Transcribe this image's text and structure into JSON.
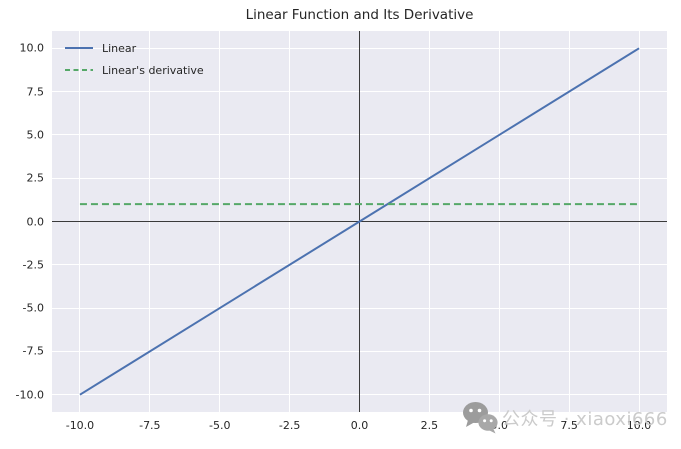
{
  "chart_data": {
    "type": "line",
    "title": "Linear Function and Its Derivative",
    "xlabel": "",
    "ylabel": "",
    "xlim": [
      -11,
      11
    ],
    "ylim": [
      -11,
      11
    ],
    "grid": true,
    "background_color": "#EAEAF2",
    "gridline_color": "#FFFFFF",
    "origin_axis_lines": {
      "vertical_at_x": 0,
      "horizontal_at_y": 0,
      "color": "#3A3A3A"
    },
    "xticks": [
      -10,
      -7.5,
      -5,
      -2.5,
      0,
      2.5,
      5,
      7.5,
      10
    ],
    "xtick_labels": [
      "-10.0",
      "-7.5",
      "-5.0",
      "-2.5",
      "0.0",
      "2.5",
      "5.0",
      "7.5",
      "10.0"
    ],
    "yticks": [
      -10,
      -7.5,
      -5,
      -2.5,
      0,
      2.5,
      5,
      7.5,
      10
    ],
    "ytick_labels": [
      "-10.0",
      "-7.5",
      "-5.0",
      "-2.5",
      "0.0",
      "2.5",
      "5.0",
      "7.5",
      "10.0"
    ],
    "legend": {
      "position": "upper-left",
      "frame": false
    },
    "series": [
      {
        "name": "Linear",
        "color": "#4C72B0",
        "line_style": "solid",
        "x": [
          -10,
          10
        ],
        "y": [
          -10,
          10
        ]
      },
      {
        "name": "Linear's derivative",
        "color": "#55A868",
        "line_style": "dashed",
        "x": [
          -10,
          10
        ],
        "y": [
          1,
          1
        ]
      }
    ]
  },
  "watermark": {
    "icon": "wechat-icon",
    "text": "公众号 · xiaoxi666",
    "text_color": "#CBCBCB",
    "icon_color": "#9C9C9C"
  }
}
